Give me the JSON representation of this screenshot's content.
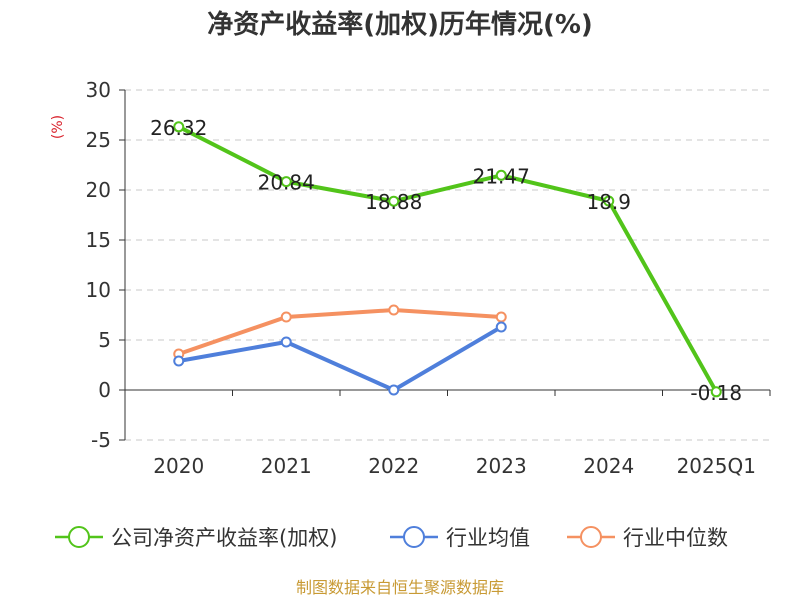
{
  "chart_data": {
    "type": "line",
    "title": "净资产收益率(加权)历年情况(%)",
    "xlabel": "",
    "ylabel": "(%)",
    "ylim": [
      -5,
      30
    ],
    "yticks": [
      30,
      25,
      20,
      15,
      10,
      5,
      0,
      -5
    ],
    "categories": [
      "2020",
      "2021",
      "2022",
      "2023",
      "2024",
      "2025Q1"
    ],
    "grid": true,
    "legend": "bottom",
    "series": [
      {
        "name": "公司净资产收益率(加权)",
        "color": "#52c41a",
        "values": [
          26.32,
          20.84,
          18.88,
          21.47,
          18.9,
          -0.18
        ],
        "labels": [
          "26.32",
          "20.84",
          "18.88",
          "21.47",
          "18.9",
          "-0.18"
        ]
      },
      {
        "name": "行业均值",
        "color": "#4f7fdb",
        "values": [
          2.9,
          4.8,
          0.0,
          6.3,
          null,
          null
        ]
      },
      {
        "name": "行业中位数",
        "color": "#f59161",
        "values": [
          3.6,
          7.3,
          8.0,
          7.3,
          null,
          null
        ]
      }
    ],
    "source": "制图数据来自恒生聚源数据库"
  }
}
